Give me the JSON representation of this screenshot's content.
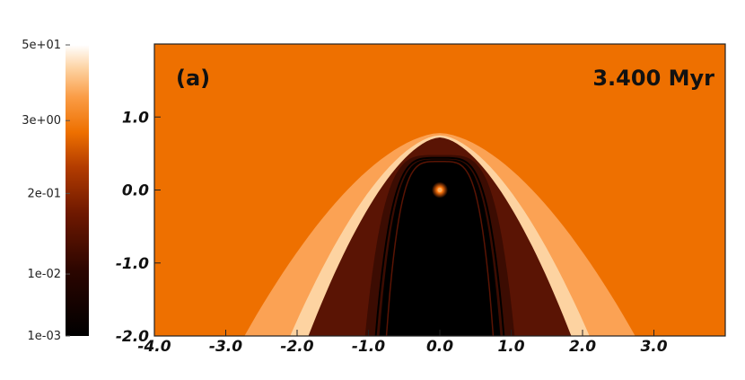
{
  "chart_data": {
    "type": "heatmap",
    "panel_label": "(a)",
    "time_label": "3.400 Myr",
    "x_ticks": [
      "-4.0",
      "-3.0",
      "-2.0",
      "-1.0",
      "0.0",
      "1.0",
      "2.0",
      "3.0"
    ],
    "x_tick_values": [
      -4.0,
      -3.0,
      -2.0,
      -1.0,
      0.0,
      1.0,
      2.0,
      3.0
    ],
    "y_ticks": [
      "1.0",
      "0.0",
      "-1.0",
      "-2.0"
    ],
    "y_tick_values": [
      1.0,
      0.0,
      -1.0,
      -2.0
    ],
    "xlim": [
      -4.0,
      4.0
    ],
    "ylim": [
      -2.0,
      2.0
    ],
    "colorbar": {
      "scale": "log",
      "tick_labels": [
        "5e+01",
        "3e+00",
        "2e-01",
        "1e-02",
        "1e-03"
      ],
      "tick_values": [
        50,
        3,
        0.2,
        0.01,
        0.001
      ],
      "colormap": "black-red-orange-white"
    },
    "colors": {
      "ambient": "#ee7000",
      "shell_outer": "#fba254",
      "shell_rim": "#fdd8aa",
      "cavity": "#5a1404",
      "core": "#000000",
      "source": "#ff6a00"
    },
    "structures": {
      "source_position": [
        0.0,
        0.0
      ],
      "shell_outer_apex_y": 0.78,
      "shell_outer_halfwidth_at_bottom": 2.75,
      "cavity_apex_y": 0.72,
      "cavity_halfwidth_at_bottom": 1.85,
      "core_apex_y": 0.42,
      "core_halfwidth": 0.85
    }
  }
}
